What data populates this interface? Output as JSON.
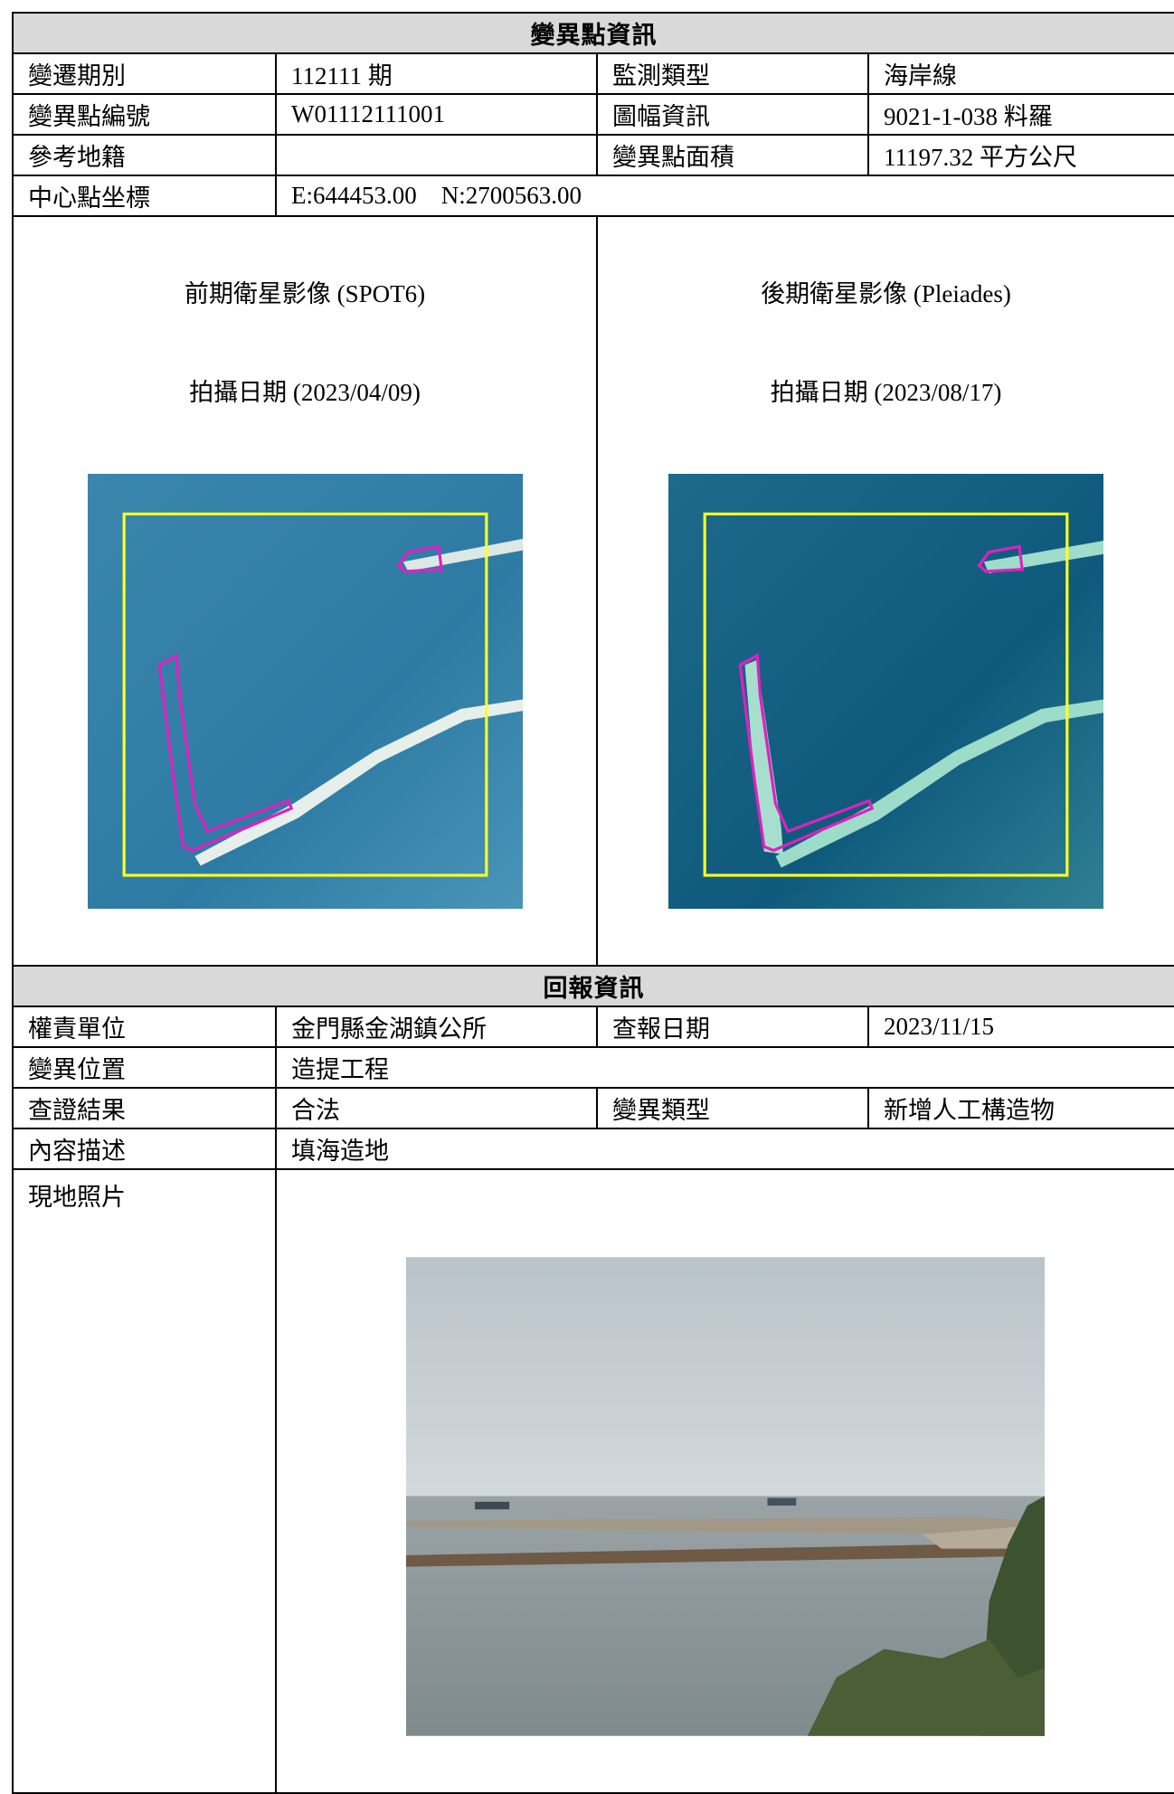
{
  "change_point": {
    "title": "變異點資訊",
    "fields": [
      {
        "label": "變遷期別",
        "value": "112111 期"
      },
      {
        "label": "監測類型",
        "value": "海岸線"
      },
      {
        "label": "變異點編號",
        "value": "W01112111001"
      },
      {
        "label": "圖幅資訊",
        "value": "9021-1-038 料羅"
      },
      {
        "label": "參考地籍"
      },
      {
        "label": "變異點面積",
        "value": "11197.32 平方公尺"
      },
      {
        "label": "中心點坐標",
        "value": "E:644453.00    N:2700563.00"
      }
    ],
    "images": [
      {
        "caption": "前期衛星影像 (SPOT6)",
        "date": "拍攝日期 (2023/04/09)"
      },
      {
        "caption": "後期衛星影像 (Pleiades)",
        "date": "拍攝日期 (2023/08/17)"
      }
    ]
  },
  "report": {
    "title": "回報資訊",
    "fields": [
      {
        "label": "權責單位",
        "value": "金門縣金湖鎮公所"
      },
      {
        "label": "查報日期",
        "value": "2023/11/15"
      },
      {
        "label": "變異位置",
        "value": "造提工程"
      },
      {
        "label": "查證結果",
        "value": "合法"
      },
      {
        "label": "變異類型",
        "value": "新增人工構造物"
      },
      {
        "label": "內容描述",
        "value": "填海造地"
      }
    ],
    "photo_label": "現地照片"
  }
}
